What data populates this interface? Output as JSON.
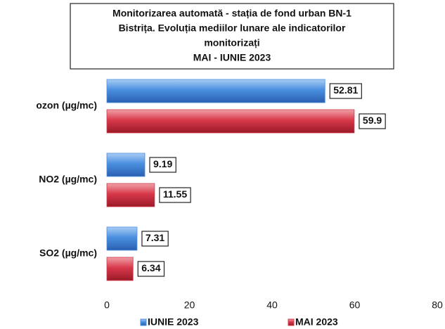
{
  "chart_data": {
    "type": "barh",
    "title": [
      "Monitorizarea automată  - stația de fond urban BN-1",
      "Bistrița. Evoluția mediilor lunare ale indicatorilor",
      "monitorizați",
      "MAI - IUNIE  2023"
    ],
    "categories": [
      "ozon (µg/mc)",
      "NO2 (µg/mc)",
      "SO2 (µg/mc)"
    ],
    "series": [
      {
        "name": "IUNIE 2023",
        "color": "#4a8fe0",
        "values": [
          52.81,
          9.19,
          7.31
        ]
      },
      {
        "name": "MAI 2023",
        "color": "#d8384a",
        "values": [
          59.9,
          11.55,
          6.34
        ]
      }
    ],
    "xlim": [
      0,
      80
    ],
    "xticks": [
      0,
      20,
      40,
      60,
      80
    ]
  }
}
